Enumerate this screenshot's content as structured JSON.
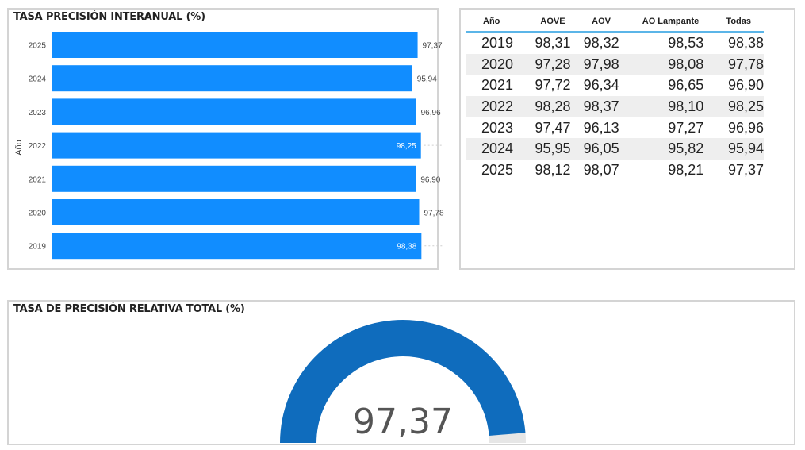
{
  "bar_panel": {
    "title": "TASA PRECISIÓN INTERANUAL (%)"
  },
  "table_panel": {
    "headers": [
      "Año",
      "AOVE",
      "AOV",
      "AO Lampante",
      "Todas"
    ],
    "rows": [
      [
        "2019",
        "98,31",
        "98,32",
        "98,53",
        "98,38"
      ],
      [
        "2020",
        "97,28",
        "97,98",
        "98,08",
        "97,78"
      ],
      [
        "2021",
        "97,72",
        "96,34",
        "96,65",
        "96,90"
      ],
      [
        "2022",
        "98,28",
        "98,37",
        "98,10",
        "98,25"
      ],
      [
        "2023",
        "97,47",
        "96,13",
        "97,27",
        "96,96"
      ],
      [
        "2024",
        "95,95",
        "96,05",
        "95,82",
        "95,94"
      ],
      [
        "2025",
        "98,12",
        "98,07",
        "98,21",
        "97,37"
      ]
    ]
  },
  "gauge_panel": {
    "title": "TASA DE PRECISIÓN RELATIVA TOTAL (%)",
    "value_label": "97,37"
  },
  "colors": {
    "bar": "#118dff",
    "gauge": "#0f6cbd",
    "table_rule": "#5bb5e8"
  },
  "chart_data": [
    {
      "type": "bar",
      "orientation": "horizontal",
      "title": "TASA PRECISIÓN INTERANUAL (%)",
      "ylabel": "Año",
      "categories": [
        "2025",
        "2024",
        "2023",
        "2022",
        "2021",
        "2020",
        "2019"
      ],
      "values": [
        97.37,
        95.94,
        96.96,
        98.25,
        96.9,
        97.78,
        98.38
      ],
      "value_labels": [
        "97,37",
        "95,94",
        "96,96",
        "98,25",
        "96,90",
        "97,78",
        "98,38"
      ],
      "inside_label": [
        false,
        false,
        false,
        true,
        false,
        false,
        true
      ],
      "xlim": [
        0,
        100
      ],
      "grid": false
    },
    {
      "type": "gauge",
      "title": "TASA DE PRECISIÓN RELATIVA TOTAL (%)",
      "value": 97.37,
      "value_label": "97,37",
      "range": [
        0,
        100
      ]
    }
  ]
}
